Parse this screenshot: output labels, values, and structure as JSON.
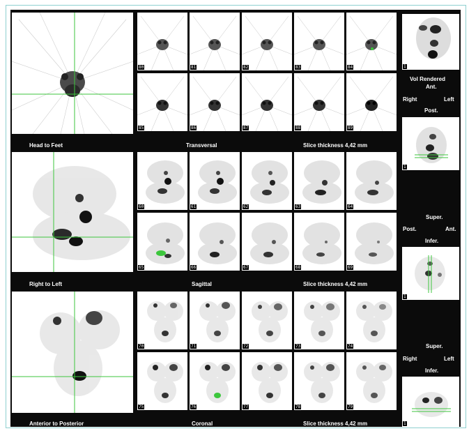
{
  "rows": [
    {
      "view_label": "Head to Feet",
      "plane_label": "Transversal",
      "thickness_label": "Slice thickness 4,42 mm",
      "slices_top": [
        "80",
        "81",
        "82",
        "83",
        "84"
      ],
      "slices_bottom": [
        "85",
        "86",
        "87",
        "88",
        "89"
      ]
    },
    {
      "view_label": "Right to Left",
      "plane_label": "Sagittal",
      "thickness_label": "Slice thickness 4,42 mm",
      "slices_top": [
        "60",
        "61",
        "62",
        "63",
        "64"
      ],
      "slices_bottom": [
        "65",
        "66",
        "67",
        "68",
        "69"
      ]
    },
    {
      "view_label": "Anterior to Posterior",
      "plane_label": "Coronal",
      "thickness_label": "Slice thickness 4,42 mm",
      "slices_top": [
        "70",
        "71",
        "72",
        "73",
        "74"
      ],
      "slices_bottom": [
        "75",
        "76",
        "77",
        "78",
        "79"
      ]
    }
  ],
  "side": {
    "volume_title": "Vol Rendered",
    "orient1": {
      "top": "Ant.",
      "left": "Right",
      "right": "Left",
      "bottom": "Post."
    },
    "orient2": {
      "top": "Super.",
      "left": "Post.",
      "right": "Ant.",
      "bottom": "Infer."
    },
    "orient3": {
      "top": "Super.",
      "left": "Right",
      "right": "Left",
      "bottom": "Infer."
    },
    "thumb_labels": [
      "1",
      "1",
      "1",
      "1"
    ]
  },
  "colors": {
    "crosshair": "#3cc63c",
    "background": "#0b0b0b",
    "frame": "#8ecfcf"
  }
}
